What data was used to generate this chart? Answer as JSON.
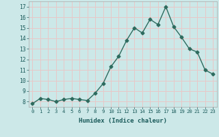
{
  "x": [
    0,
    1,
    2,
    3,
    4,
    5,
    6,
    7,
    8,
    9,
    10,
    11,
    12,
    13,
    14,
    15,
    16,
    17,
    18,
    19,
    20,
    21,
    22,
    23
  ],
  "y": [
    7.8,
    8.3,
    8.2,
    8.0,
    8.2,
    8.3,
    8.2,
    8.1,
    8.8,
    9.7,
    11.3,
    12.3,
    13.8,
    15.0,
    14.5,
    15.8,
    15.3,
    17.0,
    15.1,
    14.1,
    13.0,
    12.7,
    11.0,
    10.6
  ],
  "xlabel": "Humidex (Indice chaleur)",
  "line_color": "#2e6b5e",
  "bg_color": "#cce8e8",
  "grid_color": "#e8c8c8",
  "ylim": [
    7.5,
    17.5
  ],
  "xlim": [
    -0.5,
    23.5
  ],
  "yticks": [
    8,
    9,
    10,
    11,
    12,
    13,
    14,
    15,
    16,
    17
  ],
  "xticks": [
    0,
    1,
    2,
    3,
    4,
    5,
    6,
    7,
    8,
    9,
    10,
    11,
    12,
    13,
    14,
    15,
    16,
    17,
    18,
    19,
    20,
    21,
    22,
    23
  ],
  "xtick_labels": [
    "0",
    "1",
    "2",
    "3",
    "4",
    "5",
    "6",
    "7",
    "8",
    "9",
    "10",
    "11",
    "12",
    "13",
    "14",
    "15",
    "16",
    "17",
    "18",
    "19",
    "20",
    "21",
    "22",
    "23"
  ],
  "marker": "D",
  "marker_size": 2.5,
  "line_width": 1.0
}
